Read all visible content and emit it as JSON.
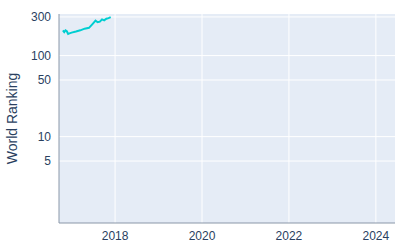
{
  "chart_data": {
    "type": "line",
    "y_label": "World Ranking",
    "x": [
      2016.8,
      2016.83,
      2016.86,
      2016.89,
      2016.92,
      2016.95,
      2017.0,
      2017.1,
      2017.2,
      2017.3,
      2017.4,
      2017.48,
      2017.55,
      2017.6,
      2017.65,
      2017.7,
      2017.75,
      2017.8,
      2017.85,
      2017.9
    ],
    "values": [
      205,
      195,
      205,
      200,
      185,
      188,
      192,
      198,
      205,
      215,
      220,
      245,
      270,
      258,
      262,
      280,
      272,
      285,
      290,
      298
    ],
    "color": "#00CED1",
    "log": "y",
    "grid": true,
    "xlim": [
      2016.71,
      2024.44
    ],
    "xticks": [
      2018,
      2020,
      2022,
      2024
    ],
    "ylim": [
      0.86,
      326
    ],
    "yticks": [
      5,
      10,
      50,
      100,
      300
    ]
  }
}
